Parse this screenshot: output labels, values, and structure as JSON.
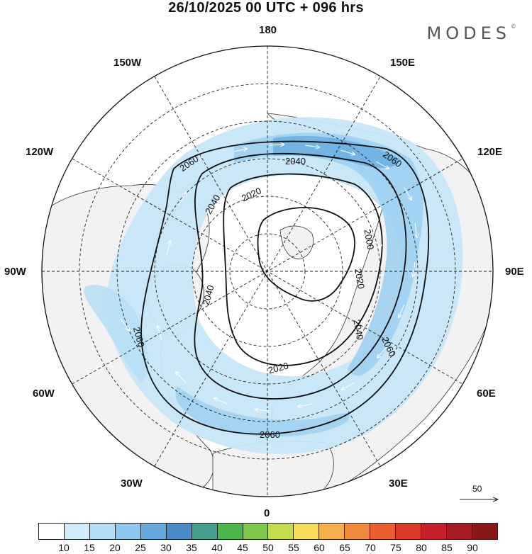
{
  "title": "26/10/2025  00 UTC  + 096 hrs",
  "brand": "MODES",
  "brand_mark": "©",
  "longitudes": {
    "top": "180",
    "bottom": "0",
    "left": "90W",
    "right": "90E",
    "w150": "150W",
    "w120": "120W",
    "w60": "60W",
    "w30": "30W",
    "e150": "150E",
    "e120": "120E",
    "e60": "60E",
    "e30": "30E"
  },
  "contours": [
    "2000",
    "2020",
    "2040",
    "2060"
  ],
  "contour_labels": [
    "2060",
    "2040",
    "2020",
    "2000",
    "2020",
    "2040",
    "2060",
    "2060",
    "2020",
    "2040",
    "2060",
    "2040",
    "2060"
  ],
  "reference_vector": "50",
  "colorbar": {
    "labels": [
      "10",
      "15",
      "20",
      "25",
      "30",
      "35",
      "40",
      "45",
      "50",
      "55",
      "60",
      "65",
      "70",
      "75",
      "80",
      "85",
      "90"
    ],
    "colors": [
      "#ffffff",
      "#d3ecfa",
      "#b5def6",
      "#8ec6ee",
      "#66a9df",
      "#4a8bc7",
      "#46a08c",
      "#4cb54c",
      "#80c84a",
      "#c2dc4c",
      "#f5dc5a",
      "#f5ae4c",
      "#ef8a3c",
      "#ea5e30",
      "#de3a2c",
      "#c8202a",
      "#a81c26",
      "#881818"
    ]
  },
  "colors": {
    "land": "#f2f2f2",
    "ocean": "#ffffff",
    "coast": "#333333",
    "contour": "#111111",
    "wind_light": "#c7e6f8",
    "wind_mid": "#9ed0f1",
    "wind_strong": "#6aaee2"
  }
}
